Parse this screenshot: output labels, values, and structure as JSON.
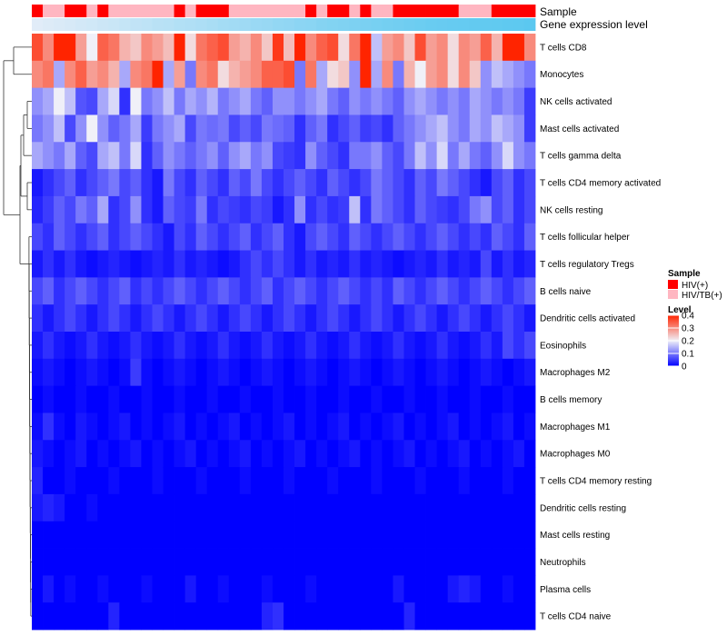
{
  "chart_data": {
    "type": "heatmap",
    "title": "",
    "annotation_tracks": {
      "sample_label": "Sample",
      "gene_label": "Gene expression level"
    },
    "rows": [
      "T cells CD8",
      "Monocytes",
      "NK cells activated",
      "Mast cells activated",
      "T cells gamma delta",
      "T cells CD4 memory activated",
      "NK cells resting",
      "T cells follicular helper",
      "T cells regulatory  Tregs",
      "B cells naive",
      "Dendritic cells activated",
      "Eosinophils",
      "Macrophages M2",
      "B cells memory",
      "Macrophages M1",
      "Macrophages M0",
      "T cells CD4 memory resting",
      "Dendritic cells resting",
      "Mast cells resting",
      "Neutrophils",
      "Plasma cells",
      "T cells CD4 naive"
    ],
    "n_columns": 46,
    "sample_groups": [
      "HIV(+)",
      "HIV/TB(+)",
      "HIV/TB(+)",
      "HIV(+)",
      "HIV(+)",
      "HIV/TB(+)",
      "HIV(+)",
      "HIV/TB(+)",
      "HIV/TB(+)",
      "HIV/TB(+)",
      "HIV/TB(+)",
      "HIV/TB(+)",
      "HIV/TB(+)",
      "HIV(+)",
      "HIV/TB(+)",
      "HIV(+)",
      "HIV(+)",
      "HIV(+)",
      "HIV/TB(+)",
      "HIV/TB(+)",
      "HIV/TB(+)",
      "HIV/TB(+)",
      "HIV/TB(+)",
      "HIV/TB(+)",
      "HIV/TB(+)",
      "HIV(+)",
      "HIV/TB(+)",
      "HIV(+)",
      "HIV(+)",
      "HIV/TB(+)",
      "HIV(+)",
      "HIV/TB(+)",
      "HIV/TB(+)",
      "HIV(+)",
      "HIV(+)",
      "HIV(+)",
      "HIV(+)",
      "HIV(+)",
      "HIV(+)",
      "HIV/TB(+)",
      "HIV/TB(+)",
      "HIV/TB(+)",
      "HIV(+)",
      "HIV(+)",
      "HIV(+)",
      "HIV(+)"
    ],
    "gene_expression_level": [
      0.05,
      0.08,
      0.1,
      0.12,
      0.15,
      0.17,
      0.2,
      0.22,
      0.25,
      0.28,
      0.3,
      0.33,
      0.35,
      0.38,
      0.4,
      0.42,
      0.45,
      0.48,
      0.5,
      0.52,
      0.55,
      0.57,
      0.6,
      0.62,
      0.65,
      0.67,
      0.7,
      0.72,
      0.74,
      0.76,
      0.78,
      0.8,
      0.82,
      0.84,
      0.86,
      0.88,
      0.9,
      0.91,
      0.92,
      0.93,
      0.94,
      0.95,
      0.96,
      0.97,
      0.98,
      1.0
    ],
    "values": [
      [
        0.36,
        0.3,
        0.42,
        0.44,
        0.28,
        0.2,
        0.34,
        0.32,
        0.26,
        0.24,
        0.3,
        0.28,
        0.25,
        0.44,
        0.22,
        0.32,
        0.34,
        0.36,
        0.28,
        0.26,
        0.3,
        0.24,
        0.38,
        0.25,
        0.45,
        0.3,
        0.34,
        0.36,
        0.22,
        0.32,
        0.45,
        0.16,
        0.28,
        0.3,
        0.24,
        0.36,
        0.28,
        0.3,
        0.22,
        0.3,
        0.28,
        0.34,
        0.26,
        0.42,
        0.44,
        0.3
      ],
      [
        0.3,
        0.32,
        0.14,
        0.3,
        0.34,
        0.28,
        0.3,
        0.26,
        0.14,
        0.3,
        0.32,
        0.45,
        0.14,
        0.28,
        0.1,
        0.3,
        0.32,
        0.22,
        0.26,
        0.28,
        0.3,
        0.34,
        0.34,
        0.36,
        0.1,
        0.32,
        0.14,
        0.22,
        0.24,
        0.12,
        0.46,
        0.14,
        0.3,
        0.1,
        0.26,
        0.2,
        0.28,
        0.3,
        0.22,
        0.3,
        0.24,
        0.12,
        0.16,
        0.14,
        0.12,
        0.1
      ],
      [
        0.12,
        0.14,
        0.2,
        0.16,
        0.07,
        0.06,
        0.14,
        0.18,
        0.04,
        0.2,
        0.1,
        0.12,
        0.16,
        0.1,
        0.14,
        0.12,
        0.15,
        0.1,
        0.12,
        0.14,
        0.1,
        0.08,
        0.12,
        0.12,
        0.1,
        0.12,
        0.14,
        0.1,
        0.08,
        0.12,
        0.1,
        0.12,
        0.1,
        0.08,
        0.12,
        0.14,
        0.12,
        0.1,
        0.12,
        0.1,
        0.14,
        0.12,
        0.1,
        0.12,
        0.1,
        0.05
      ],
      [
        0.1,
        0.12,
        0.16,
        0.06,
        0.12,
        0.2,
        0.12,
        0.08,
        0.1,
        0.14,
        0.05,
        0.1,
        0.12,
        0.14,
        0.06,
        0.1,
        0.09,
        0.1,
        0.06,
        0.08,
        0.06,
        0.1,
        0.09,
        0.08,
        0.04,
        0.08,
        0.1,
        0.04,
        0.06,
        0.08,
        0.05,
        0.06,
        0.04,
        0.08,
        0.1,
        0.12,
        0.14,
        0.16,
        0.12,
        0.1,
        0.14,
        0.12,
        0.16,
        0.14,
        0.12,
        0.05
      ],
      [
        0.14,
        0.12,
        0.1,
        0.14,
        0.08,
        0.06,
        0.14,
        0.16,
        0.1,
        0.18,
        0.04,
        0.08,
        0.12,
        0.1,
        0.08,
        0.1,
        0.12,
        0.08,
        0.12,
        0.14,
        0.1,
        0.12,
        0.06,
        0.05,
        0.04,
        0.12,
        0.08,
        0.06,
        0.04,
        0.1,
        0.1,
        0.12,
        0.08,
        0.06,
        0.1,
        0.16,
        0.12,
        0.18,
        0.1,
        0.14,
        0.1,
        0.08,
        0.12,
        0.18,
        0.12,
        0.1
      ],
      [
        0.02,
        0.04,
        0.06,
        0.08,
        0.04,
        0.06,
        0.08,
        0.1,
        0.06,
        0.08,
        0.04,
        0.02,
        0.1,
        0.06,
        0.04,
        0.08,
        0.06,
        0.04,
        0.08,
        0.06,
        0.1,
        0.06,
        0.04,
        0.06,
        0.08,
        0.06,
        0.04,
        0.08,
        0.06,
        0.04,
        0.06,
        0.1,
        0.08,
        0.06,
        0.04,
        0.08,
        0.06,
        0.1,
        0.08,
        0.06,
        0.04,
        0.02,
        0.06,
        0.08,
        0.04,
        0.06
      ],
      [
        0.03,
        0.05,
        0.08,
        0.06,
        0.1,
        0.08,
        0.14,
        0.04,
        0.06,
        0.12,
        0.04,
        0.02,
        0.08,
        0.06,
        0.05,
        0.1,
        0.04,
        0.06,
        0.05,
        0.04,
        0.06,
        0.05,
        0.02,
        0.04,
        0.12,
        0.04,
        0.06,
        0.04,
        0.05,
        0.16,
        0.04,
        0.1,
        0.08,
        0.06,
        0.04,
        0.08,
        0.06,
        0.05,
        0.04,
        0.06,
        0.1,
        0.12,
        0.06,
        0.08,
        0.04,
        0.06
      ],
      [
        0.06,
        0.04,
        0.08,
        0.06,
        0.04,
        0.06,
        0.08,
        0.04,
        0.06,
        0.08,
        0.06,
        0.04,
        0.02,
        0.06,
        0.04,
        0.08,
        0.06,
        0.04,
        0.06,
        0.08,
        0.04,
        0.06,
        0.08,
        0.04,
        0.02,
        0.06,
        0.08,
        0.06,
        0.04,
        0.08,
        0.06,
        0.04,
        0.06,
        0.08,
        0.06,
        0.04,
        0.06,
        0.08,
        0.06,
        0.04,
        0.06,
        0.04,
        0.08,
        0.06,
        0.04,
        0.08
      ],
      [
        0.02,
        0.04,
        0.02,
        0.04,
        0.02,
        0.01,
        0.02,
        0.03,
        0.02,
        0.01,
        0.02,
        0.03,
        0.02,
        0.04,
        0.02,
        0.03,
        0.02,
        0.01,
        0.02,
        0.04,
        0.06,
        0.04,
        0.06,
        0.04,
        0.02,
        0.04,
        0.02,
        0.03,
        0.02,
        0.04,
        0.02,
        0.03,
        0.02,
        0.01,
        0.02,
        0.03,
        0.02,
        0.04,
        0.02,
        0.03,
        0.02,
        0.06,
        0.02,
        0.04,
        0.02,
        0.03
      ],
      [
        0.06,
        0.08,
        0.04,
        0.06,
        0.08,
        0.06,
        0.04,
        0.06,
        0.08,
        0.04,
        0.06,
        0.04,
        0.06,
        0.08,
        0.06,
        0.04,
        0.06,
        0.08,
        0.06,
        0.04,
        0.06,
        0.08,
        0.04,
        0.06,
        0.08,
        0.06,
        0.04,
        0.06,
        0.08,
        0.06,
        0.04,
        0.06,
        0.04,
        0.08,
        0.06,
        0.04,
        0.06,
        0.08,
        0.06,
        0.04,
        0.06,
        0.08,
        0.06,
        0.04,
        0.06,
        0.08
      ],
      [
        0.04,
        0.02,
        0.04,
        0.06,
        0.04,
        0.02,
        0.04,
        0.06,
        0.04,
        0.02,
        0.04,
        0.06,
        0.04,
        0.02,
        0.04,
        0.06,
        0.04,
        0.02,
        0.04,
        0.06,
        0.04,
        0.02,
        0.04,
        0.06,
        0.04,
        0.02,
        0.04,
        0.06,
        0.04,
        0.02,
        0.04,
        0.06,
        0.04,
        0.02,
        0.04,
        0.06,
        0.04,
        0.02,
        0.04,
        0.06,
        0.04,
        0.02,
        0.04,
        0.06,
        0.04,
        0.02
      ],
      [
        0.02,
        0.04,
        0.02,
        0.01,
        0.02,
        0.04,
        0.02,
        0.01,
        0.02,
        0.04,
        0.02,
        0.01,
        0.02,
        0.04,
        0.02,
        0.01,
        0.02,
        0.04,
        0.02,
        0.01,
        0.02,
        0.04,
        0.02,
        0.01,
        0.02,
        0.04,
        0.02,
        0.01,
        0.02,
        0.04,
        0.02,
        0.01,
        0.02,
        0.04,
        0.02,
        0.01,
        0.02,
        0.04,
        0.02,
        0.01,
        0.02,
        0.04,
        0.02,
        0.06,
        0.04,
        0.06
      ],
      [
        0.01,
        0.02,
        0.01,
        0.0,
        0.01,
        0.02,
        0.01,
        0.0,
        0.01,
        0.05,
        0.01,
        0.0,
        0.01,
        0.02,
        0.01,
        0.0,
        0.01,
        0.02,
        0.01,
        0.0,
        0.01,
        0.02,
        0.01,
        0.0,
        0.01,
        0.02,
        0.01,
        0.0,
        0.01,
        0.02,
        0.01,
        0.0,
        0.01,
        0.02,
        0.01,
        0.0,
        0.01,
        0.02,
        0.01,
        0.0,
        0.01,
        0.02,
        0.01,
        0.0,
        0.01,
        0.02
      ],
      [
        0.0,
        0.01,
        0.0,
        0.0,
        0.01,
        0.0,
        0.0,
        0.01,
        0.0,
        0.0,
        0.01,
        0.0,
        0.0,
        0.01,
        0.0,
        0.0,
        0.01,
        0.0,
        0.0,
        0.01,
        0.0,
        0.0,
        0.01,
        0.0,
        0.0,
        0.01,
        0.0,
        0.0,
        0.01,
        0.0,
        0.0,
        0.01,
        0.0,
        0.0,
        0.01,
        0.0,
        0.0,
        0.01,
        0.0,
        0.0,
        0.01,
        0.0,
        0.0,
        0.01,
        0.0,
        0.0
      ],
      [
        0.01,
        0.04,
        0.01,
        0.0,
        0.02,
        0.01,
        0.0,
        0.01,
        0.02,
        0.0,
        0.01,
        0.0,
        0.01,
        0.02,
        0.0,
        0.01,
        0.0,
        0.01,
        0.02,
        0.0,
        0.01,
        0.0,
        0.01,
        0.02,
        0.0,
        0.01,
        0.0,
        0.01,
        0.02,
        0.0,
        0.01,
        0.0,
        0.01,
        0.02,
        0.0,
        0.01,
        0.0,
        0.01,
        0.02,
        0.0,
        0.01,
        0.0,
        0.01,
        0.02,
        0.0,
        0.01
      ],
      [
        0.02,
        0.01,
        0.0,
        0.01,
        0.02,
        0.0,
        0.01,
        0.0,
        0.01,
        0.02,
        0.0,
        0.01,
        0.0,
        0.01,
        0.02,
        0.0,
        0.01,
        0.0,
        0.01,
        0.02,
        0.0,
        0.01,
        0.0,
        0.01,
        0.02,
        0.0,
        0.01,
        0.0,
        0.01,
        0.02,
        0.0,
        0.01,
        0.0,
        0.01,
        0.02,
        0.0,
        0.01,
        0.0,
        0.01,
        0.02,
        0.0,
        0.01,
        0.0,
        0.01,
        0.02,
        0.0
      ],
      [
        0.03,
        0.0,
        0.0,
        0.01,
        0.0,
        0.0,
        0.0,
        0.01,
        0.0,
        0.0,
        0.0,
        0.01,
        0.0,
        0.0,
        0.0,
        0.01,
        0.0,
        0.0,
        0.0,
        0.01,
        0.0,
        0.0,
        0.0,
        0.01,
        0.0,
        0.0,
        0.0,
        0.01,
        0.0,
        0.0,
        0.0,
        0.01,
        0.0,
        0.0,
        0.0,
        0.01,
        0.0,
        0.0,
        0.0,
        0.01,
        0.0,
        0.0,
        0.0,
        0.01,
        0.0,
        0.0
      ],
      [
        0.02,
        0.03,
        0.02,
        0.0,
        0.0,
        0.01,
        0.0,
        0.0,
        0.0,
        0.0,
        0.0,
        0.0,
        0.0,
        0.0,
        0.0,
        0.0,
        0.0,
        0.0,
        0.0,
        0.0,
        0.0,
        0.0,
        0.0,
        0.0,
        0.0,
        0.0,
        0.0,
        0.0,
        0.0,
        0.0,
        0.0,
        0.0,
        0.0,
        0.0,
        0.0,
        0.0,
        0.0,
        0.0,
        0.0,
        0.0,
        0.0,
        0.0,
        0.0,
        0.0,
        0.0,
        0.0
      ],
      [
        0.0,
        0.0,
        0.0,
        0.0,
        0.0,
        0.0,
        0.0,
        0.0,
        0.0,
        0.0,
        0.0,
        0.0,
        0.0,
        0.0,
        0.0,
        0.0,
        0.0,
        0.0,
        0.0,
        0.0,
        0.0,
        0.0,
        0.0,
        0.0,
        0.0,
        0.0,
        0.0,
        0.0,
        0.0,
        0.0,
        0.0,
        0.0,
        0.0,
        0.0,
        0.0,
        0.0,
        0.0,
        0.0,
        0.0,
        0.0,
        0.0,
        0.0,
        0.0,
        0.0,
        0.0,
        0.0
      ],
      [
        0.0,
        0.0,
        0.0,
        0.0,
        0.0,
        0.0,
        0.0,
        0.0,
        0.0,
        0.0,
        0.0,
        0.0,
        0.0,
        0.0,
        0.0,
        0.0,
        0.0,
        0.0,
        0.0,
        0.0,
        0.0,
        0.0,
        0.0,
        0.0,
        0.0,
        0.0,
        0.0,
        0.0,
        0.0,
        0.0,
        0.0,
        0.0,
        0.0,
        0.0,
        0.0,
        0.0,
        0.0,
        0.0,
        0.0,
        0.0,
        0.0,
        0.0,
        0.0,
        0.0,
        0.0,
        0.0
      ],
      [
        0.0,
        0.02,
        0.0,
        0.01,
        0.0,
        0.0,
        0.01,
        0.0,
        0.0,
        0.0,
        0.01,
        0.0,
        0.0,
        0.0,
        0.02,
        0.0,
        0.0,
        0.01,
        0.0,
        0.0,
        0.0,
        0.01,
        0.0,
        0.0,
        0.0,
        0.01,
        0.0,
        0.0,
        0.0,
        0.0,
        0.0,
        0.0,
        0.0,
        0.02,
        0.0,
        0.0,
        0.0,
        0.0,
        0.02,
        0.03,
        0.02,
        0.0,
        0.0,
        0.01,
        0.0,
        0.0
      ],
      [
        0.0,
        0.0,
        0.0,
        0.0,
        0.0,
        0.0,
        0.0,
        0.03,
        0.0,
        0.0,
        0.0,
        0.0,
        0.0,
        0.0,
        0.0,
        0.0,
        0.0,
        0.0,
        0.0,
        0.0,
        0.0,
        0.03,
        0.04,
        0.0,
        0.0,
        0.0,
        0.0,
        0.0,
        0.0,
        0.0,
        0.0,
        0.0,
        0.0,
        0.0,
        0.03,
        0.0,
        0.0,
        0.0,
        0.0,
        0.0,
        0.0,
        0.0,
        0.0,
        0.0,
        0.0,
        0.0
      ]
    ],
    "color_scale": {
      "min": 0,
      "max": 0.4,
      "low": "#0000ff",
      "mid": "#f0f0f8",
      "high": "#ff2400",
      "mid_value": 0.2
    },
    "sample_colors": {
      "HIV(+)": "#ff0000",
      "HIV/TB(+)": "#ffb6c1"
    },
    "gene_track_colors": {
      "low": "#e8eef8",
      "high": "#5bc8f0"
    },
    "legend": {
      "sample_title": "Sample",
      "sample_entries": [
        "HIV(+)",
        "HIV/TB(+)"
      ],
      "level_title": "Level",
      "level_ticks": [
        {
          "value": 0.4,
          "label": "0.4"
        },
        {
          "value": 0.3,
          "label": "0.3"
        },
        {
          "value": 0.2,
          "label": "0.2"
        },
        {
          "value": 0.1,
          "label": "0.1"
        },
        {
          "value": 0,
          "label": "0"
        }
      ],
      "placement": "right"
    }
  }
}
